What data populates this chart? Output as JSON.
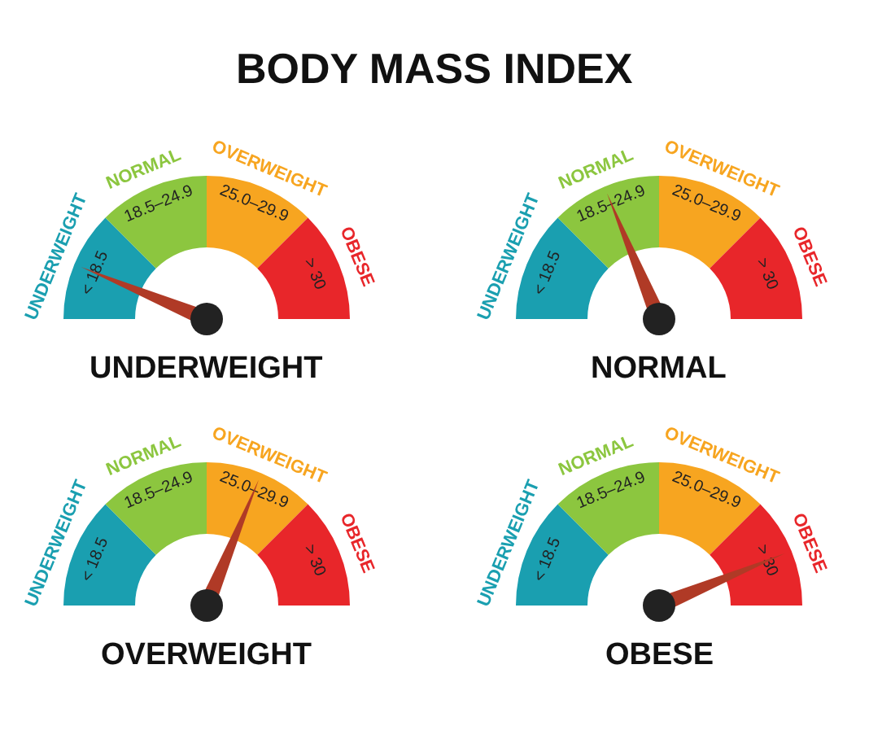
{
  "chart_data": [
    {
      "type": "donut",
      "annotations": [
        "BODY MASS INDEX"
      ],
      "title": "UNDERWEIGHT",
      "categories": [
        "UNDERWEIGHT",
        "NORMAL",
        "OVERWEIGHT",
        "OBESE"
      ],
      "values": [
        25,
        25,
        25,
        25
      ],
      "colors": [
        "#1a9fb0",
        "#8cc63f",
        "#f7a520",
        "#e8262a"
      ],
      "value_labels": [
        "< 18.5",
        "18.5–24.9",
        "25.0–29.9",
        "> 30"
      ],
      "needle": "UNDERWEIGHT"
    },
    {
      "type": "donut",
      "title": "NORMAL",
      "categories": [
        "UNDERWEIGHT",
        "NORMAL",
        "OVERWEIGHT",
        "OBESE"
      ],
      "values": [
        25,
        25,
        25,
        25
      ],
      "colors": [
        "#1a9fb0",
        "#8cc63f",
        "#f7a520",
        "#e8262a"
      ],
      "value_labels": [
        "< 18.5",
        "18.5–24.9",
        "25.0–29.9",
        "> 30"
      ],
      "needle": "NORMAL"
    },
    {
      "type": "donut",
      "title": "OVERWEIGHT",
      "categories": [
        "UNDERWEIGHT",
        "NORMAL",
        "OVERWEIGHT",
        "OBESE"
      ],
      "values": [
        25,
        25,
        25,
        25
      ],
      "colors": [
        "#1a9fb0",
        "#8cc63f",
        "#f7a520",
        "#e8262a"
      ],
      "value_labels": [
        "< 18.5",
        "18.5–24.9",
        "25.0–29.9",
        "> 30"
      ],
      "needle": "OVERWEIGHT"
    },
    {
      "type": "donut",
      "title": "OBESE",
      "categories": [
        "UNDERWEIGHT",
        "NORMAL",
        "OVERWEIGHT",
        "OBESE"
      ],
      "values": [
        25,
        25,
        25,
        25
      ],
      "colors": [
        "#1a9fb0",
        "#8cc63f",
        "#f7a520",
        "#e8262a"
      ],
      "value_labels": [
        "< 18.5",
        "18.5–24.9",
        "25.0–29.9",
        "> 30"
      ],
      "needle": "OBESE"
    }
  ]
}
